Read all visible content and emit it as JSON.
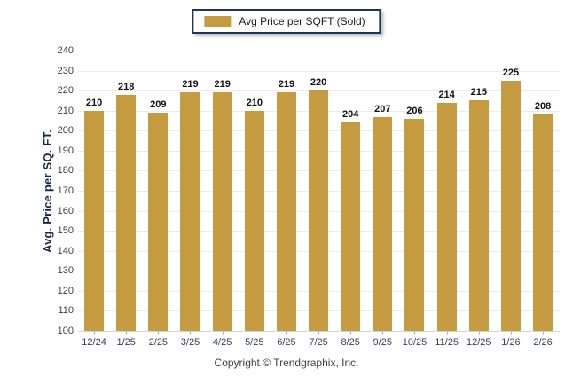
{
  "legend": {
    "label": "Avg Price per SQFT (Sold)",
    "swatch_icon": "legend-swatch",
    "swatch_color": "#C49B40"
  },
  "footer": {
    "copyright": "Copyright © Trendgraphix, Inc."
  },
  "colors": {
    "bar": "#C49B40",
    "gridline": "#ebebeb",
    "baseline": "#d4d4d4",
    "axis_text": "#33415e",
    "value_label": "#111111",
    "legend_border": "#1f3556"
  },
  "chart_data": {
    "type": "bar",
    "title": "",
    "series_name": "Avg Price per SQFT (Sold)",
    "categories": [
      "12/24",
      "1/25",
      "2/25",
      "3/25",
      "4/25",
      "5/25",
      "6/25",
      "7/25",
      "8/25",
      "9/25",
      "10/25",
      "11/25",
      "12/25",
      "1/26",
      "2/26"
    ],
    "values": [
      210,
      218,
      209,
      219,
      219,
      210,
      219,
      220,
      204,
      207,
      206,
      214,
      215,
      225,
      208
    ],
    "xlabel": "",
    "ylabel": "Avg. Price per SQ. FT.",
    "ylim": [
      100,
      240
    ],
    "ytick_step": 10,
    "grid": true,
    "legend_position": "top-center",
    "bar_color": "#C49B40",
    "value_labels": true
  }
}
